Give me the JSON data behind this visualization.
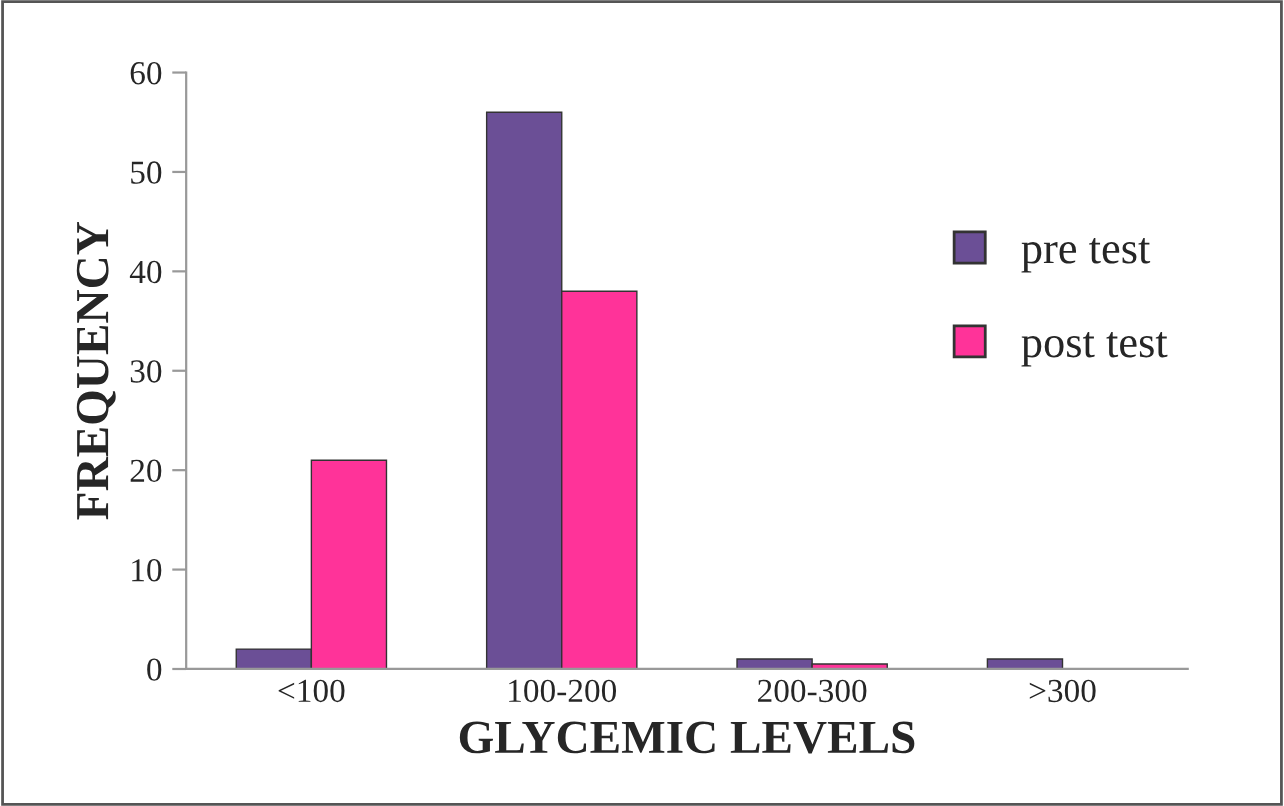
{
  "chart_data": {
    "type": "bar",
    "xlabel": "GLYCEMIC LEVELS",
    "ylabel": "FREQUENCY",
    "categories": [
      "<100",
      "100-200",
      "200-300",
      ">300"
    ],
    "series": [
      {
        "name": "pre test",
        "color": "#6b4f96",
        "values": [
          2,
          56,
          1,
          1
        ]
      },
      {
        "name": "post test",
        "color": "#ff3399",
        "values": [
          21,
          38,
          0.5,
          null
        ]
      }
    ],
    "ylim": [
      0,
      60
    ],
    "yticks": [
      0,
      10,
      20,
      30,
      40,
      50,
      60
    ],
    "grid": false,
    "legend": "right"
  }
}
